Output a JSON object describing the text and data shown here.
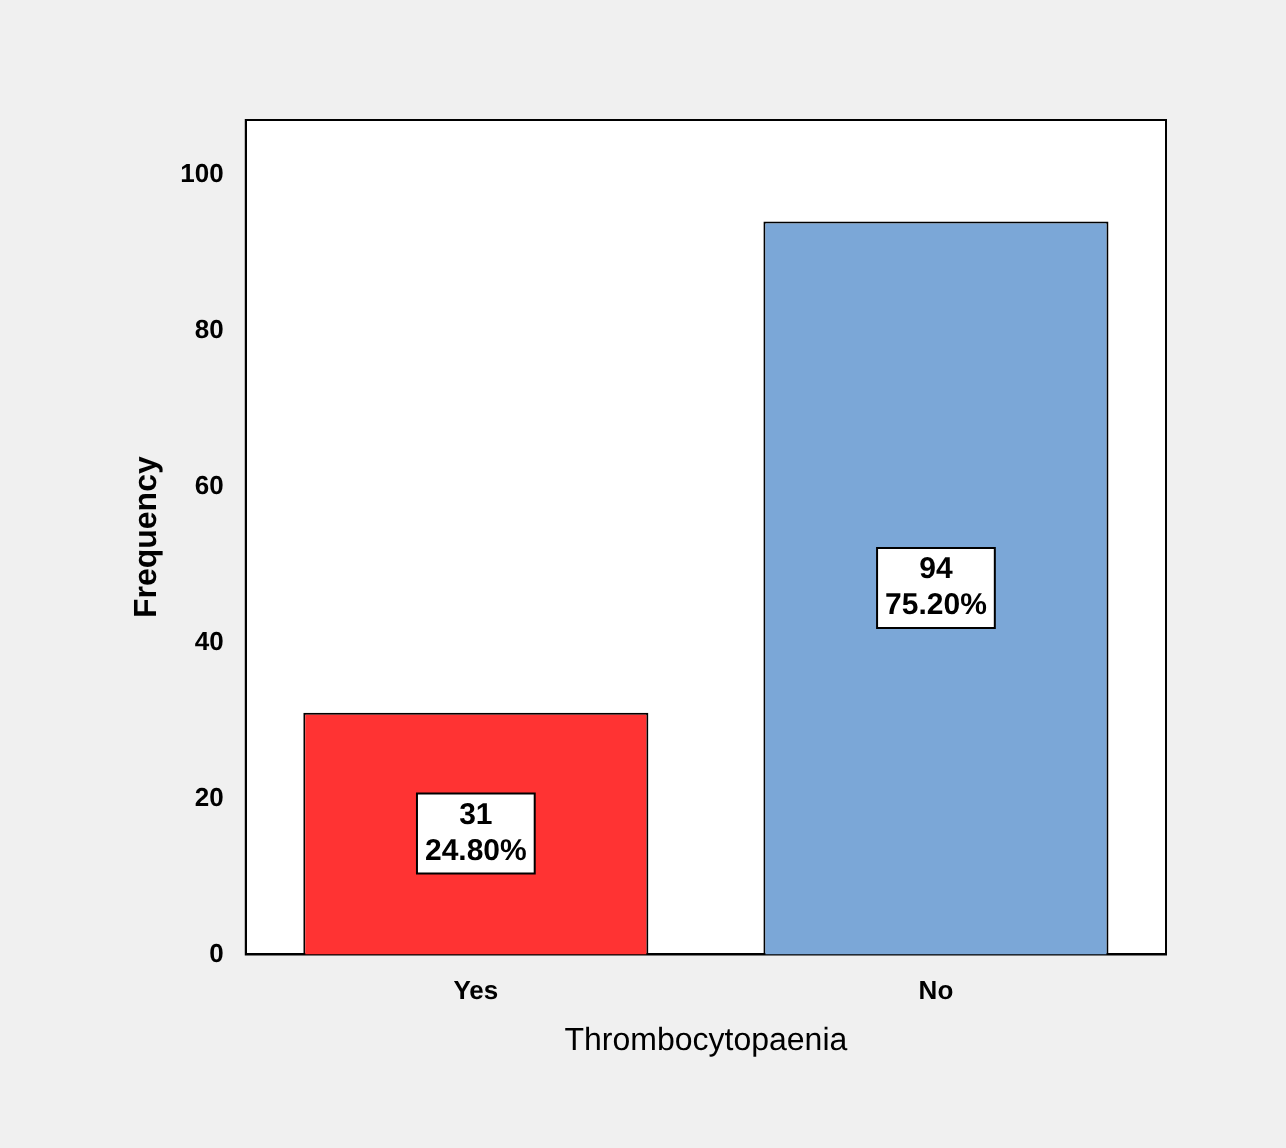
{
  "chart_data": {
    "type": "bar",
    "xlabel": "Thrombocytopaenia",
    "ylabel": "Frequency",
    "categories": [
      "Yes",
      "No"
    ],
    "values": [
      31,
      94
    ],
    "colors": [
      "#ff3333",
      "#7ba7d7"
    ],
    "value_labels": [
      "31\n24.80%",
      "94\n75.20%"
    ],
    "ylim": [
      0,
      107
    ],
    "yticks": [
      0,
      20,
      40,
      60,
      80,
      100
    ],
    "grid": false,
    "legend": false
  }
}
